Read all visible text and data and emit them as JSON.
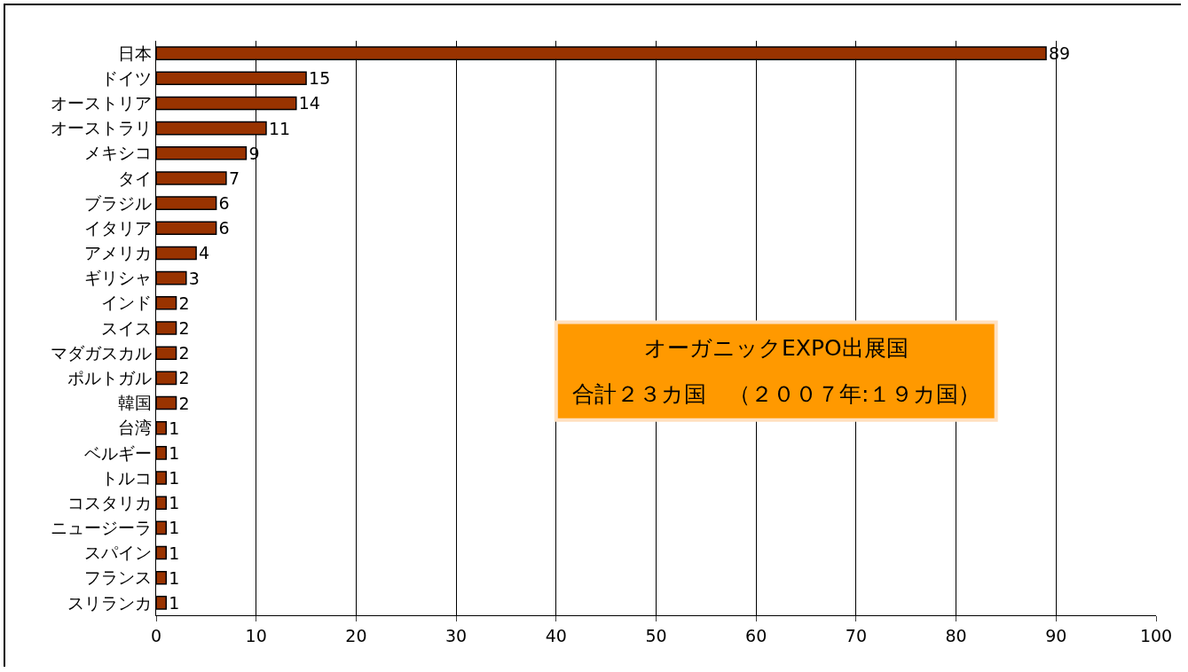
{
  "chart_data": {
    "type": "bar",
    "orientation": "horizontal",
    "categories": [
      "日本",
      "ドイツ",
      "オーストリア",
      "オーストラリ",
      "メキシコ",
      "タイ",
      "ブラジル",
      "イタリア",
      "アメリカ",
      "ギリシャ",
      "インド",
      "スイス",
      "マダガスカル",
      "ポルトガル",
      "韓国",
      "台湾",
      "ベルギー",
      "トルコ",
      "コスタリカ",
      "ニュージーラ",
      "スパイン",
      "フランス",
      "スリランカ"
    ],
    "values": [
      89,
      15,
      14,
      11,
      9,
      7,
      6,
      6,
      4,
      3,
      2,
      2,
      2,
      2,
      2,
      1,
      1,
      1,
      1,
      1,
      1,
      1,
      1
    ],
    "color": "#993300",
    "data_labels": true,
    "xlim": [
      0,
      100
    ],
    "xticks": [
      0,
      10,
      20,
      30,
      40,
      50,
      60,
      70,
      80,
      90,
      100
    ],
    "grid": "x",
    "annotations": [
      "オーガニックEXPO出展国",
      "合計２３カ国　（２００７年:１９カ国）"
    ]
  }
}
